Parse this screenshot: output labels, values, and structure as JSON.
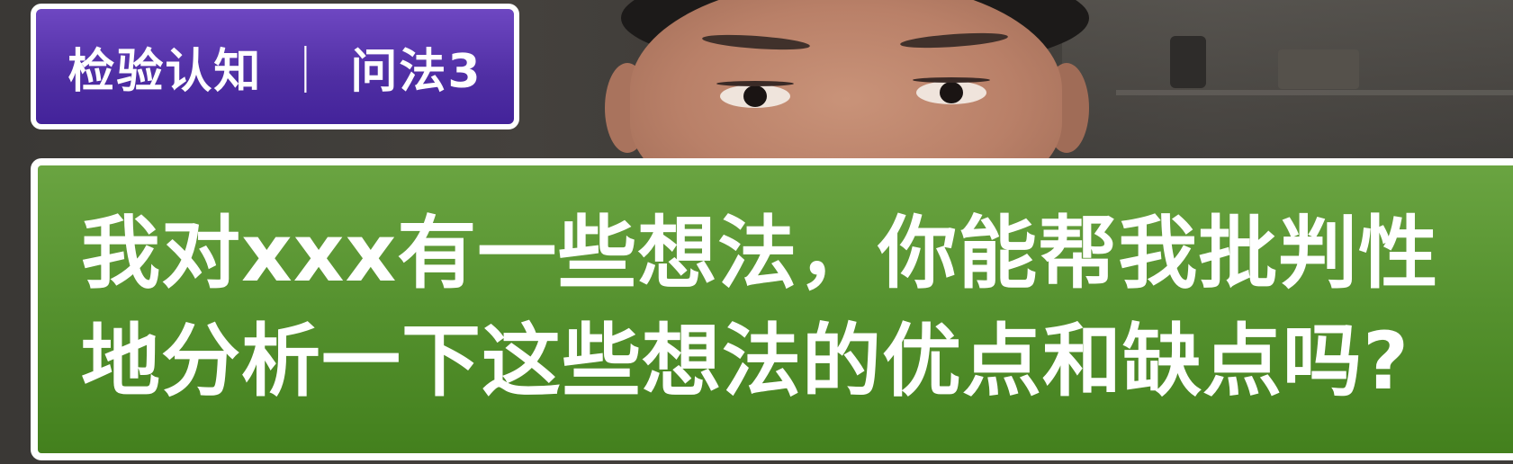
{
  "tag": {
    "left": "检验认知",
    "separator": "｜",
    "right": "问法3"
  },
  "caption": {
    "line1": "我对xxx有一些想法，你能帮我批判性",
    "line2": "地分析一下这些想法的优点和缺点吗?"
  }
}
